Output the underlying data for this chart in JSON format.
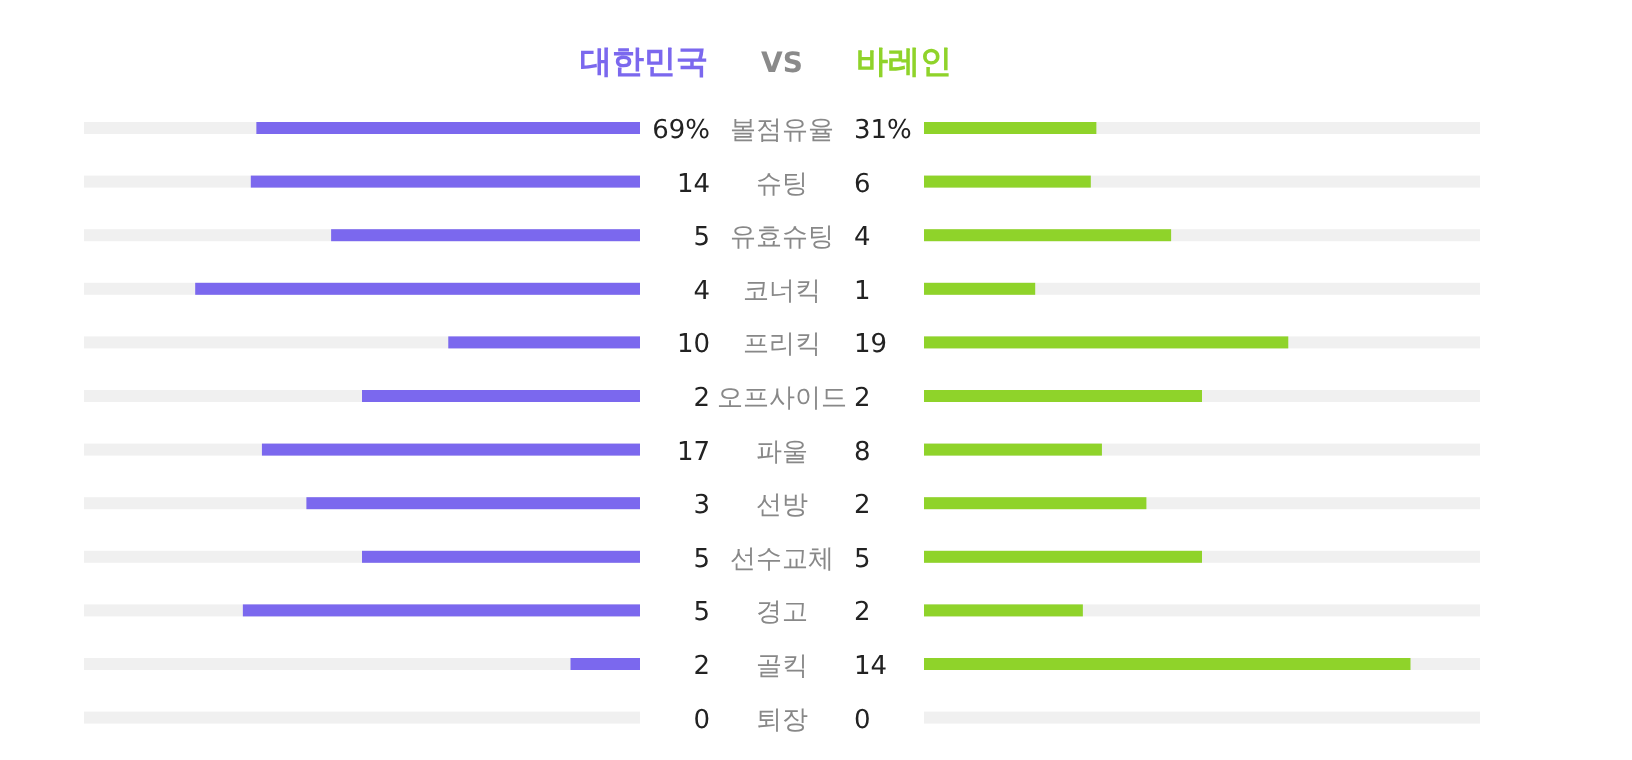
{
  "chart_data": {
    "type": "other",
    "annotations": [
      "VS"
    ],
    "categories": [
      "볼점유율",
      "슈팅",
      "유효슈팅",
      "코너킥",
      "프리킥",
      "오프사이드",
      "파울",
      "선방",
      "선수교체",
      "경고",
      "골킥",
      "퇴장"
    ],
    "series": [
      {
        "name": "대한민국",
        "color": "#7b68ee",
        "values": [
          69,
          14,
          5,
          4,
          10,
          2,
          17,
          3,
          5,
          5,
          2,
          0
        ],
        "value_labels": [
          "69%",
          "14",
          "5",
          "4",
          "10",
          "2",
          "17",
          "3",
          "5",
          "5",
          "2",
          "0"
        ]
      },
      {
        "name": "바레인",
        "color": "#8fd32a",
        "values": [
          31,
          6,
          4,
          1,
          19,
          2,
          8,
          2,
          5,
          2,
          14,
          0
        ],
        "value_labels": [
          "31%",
          "6",
          "4",
          "1",
          "19",
          "2",
          "8",
          "2",
          "5",
          "2",
          "14",
          "0"
        ]
      }
    ]
  }
}
